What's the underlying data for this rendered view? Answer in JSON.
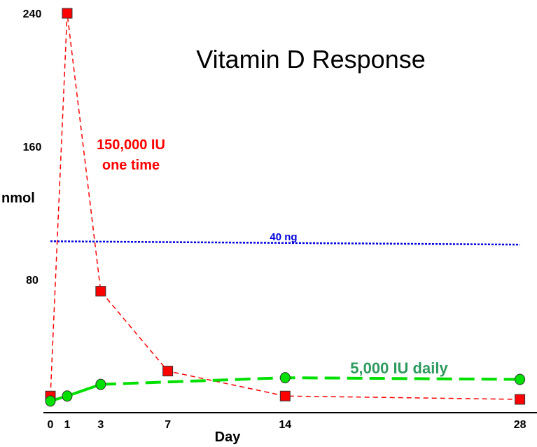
{
  "chart_data": {
    "type": "line",
    "title": "Vitamin D Response",
    "xlabel": "Day",
    "ylabel": "nmol",
    "x_ticks": [
      0,
      1,
      3,
      7,
      14,
      28
    ],
    "y_ticks": [
      80,
      160,
      240
    ],
    "ylim": [
      0,
      240
    ],
    "xlim": [
      0,
      28
    ],
    "grid": false,
    "series": [
      {
        "name": "150,000 IU one time",
        "label_lines": [
          "150,000 IU",
          "one time"
        ],
        "color": "#ff0000",
        "marker": "square",
        "style": "dashed",
        "x": [
          0,
          1,
          3,
          7,
          14,
          28
        ],
        "y": [
          10,
          240,
          73,
          25,
          10,
          8
        ]
      },
      {
        "name": "5,000 IU daily",
        "color": "#00e000",
        "label_color": "#2e9a5e",
        "marker": "circle",
        "style": "dashed",
        "x": [
          0,
          1,
          3,
          14,
          28
        ],
        "y": [
          7,
          10,
          17,
          21,
          20
        ]
      }
    ],
    "reference_line": {
      "label": "40 ng",
      "color": "#0000dd",
      "style": "dotted",
      "x": [
        0,
        28
      ],
      "y": [
        103,
        101
      ]
    }
  }
}
